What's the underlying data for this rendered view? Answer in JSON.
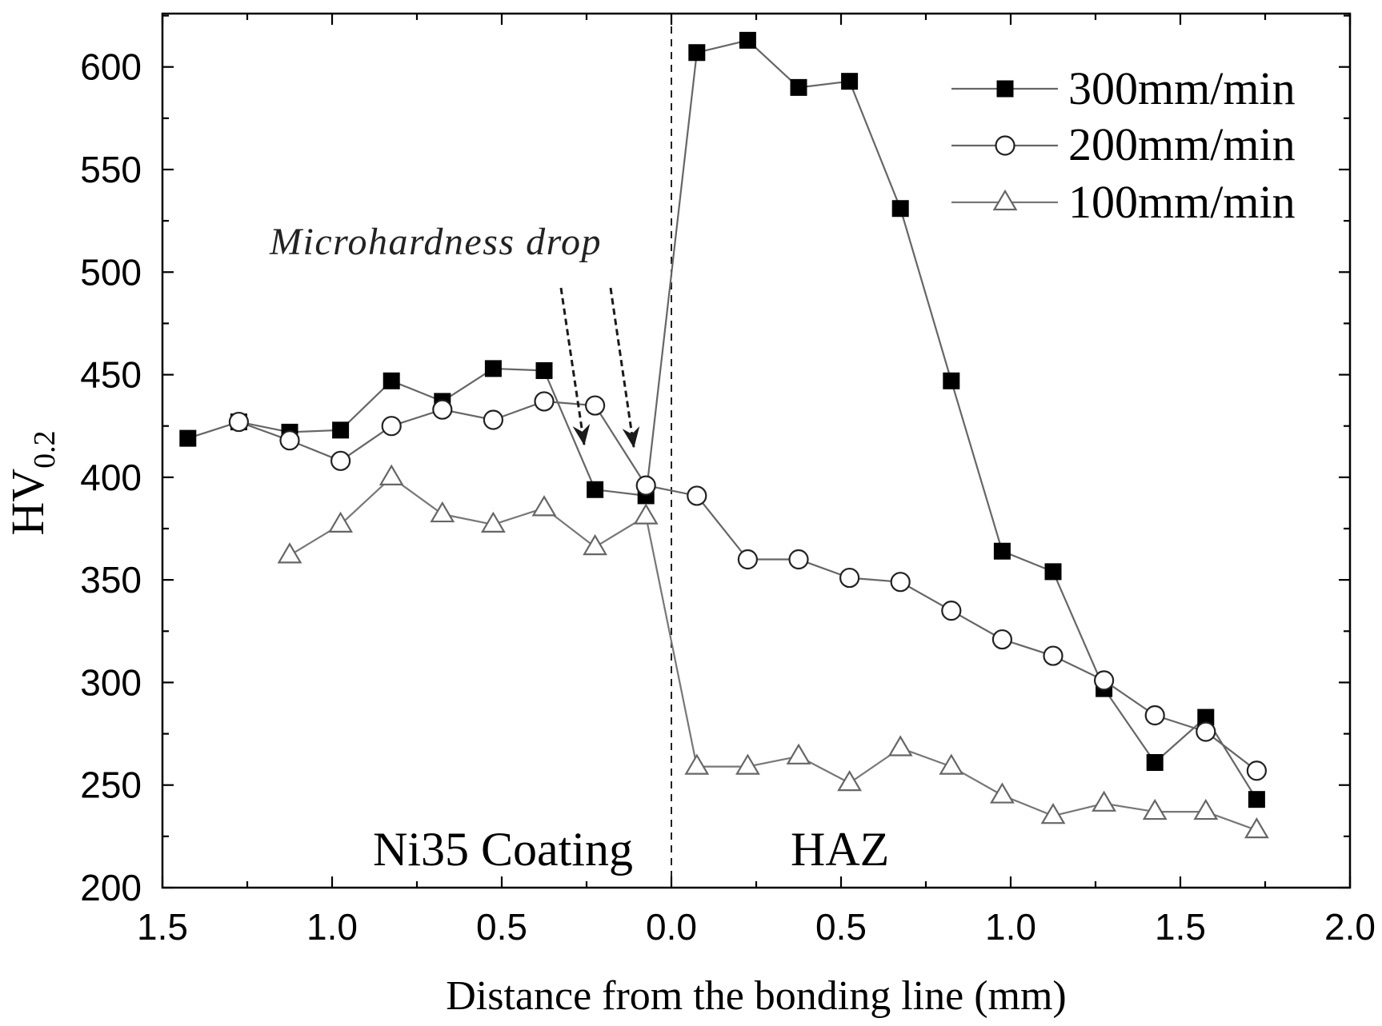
{
  "chart_data": {
    "type": "line",
    "title": "",
    "xlabel": "Distance from the bonding line (mm)",
    "ylabel": "HV",
    "ylabel_subscript": "0.2",
    "xlim": [
      -1.5,
      2.0
    ],
    "ylim": [
      200,
      626
    ],
    "x_ticks": [
      -1.5,
      -1.0,
      -0.5,
      0.0,
      0.5,
      1.0,
      1.5,
      2.0
    ],
    "x_tick_labels": [
      "1.5",
      "1.0",
      "0.5",
      "0.0",
      "0.5",
      "1.0",
      "1.5",
      "2.0"
    ],
    "x_minor_step": 0.25,
    "y_ticks": [
      200,
      250,
      300,
      350,
      400,
      450,
      500,
      550,
      600
    ],
    "y_tick_labels": [
      "200",
      "250",
      "300",
      "350",
      "400",
      "450",
      "500",
      "550",
      "600"
    ],
    "y_minor_step": 25,
    "grid": false,
    "legend_position": "top-right",
    "bonding_line_x": 0.0,
    "series": [
      {
        "name": "300mm/min",
        "marker": "filled-square",
        "marker_fill": "#000000",
        "marker_stroke": "#000000",
        "line_color": "#666666",
        "x": [
          -1.425,
          -1.275,
          -1.125,
          -0.975,
          -0.825,
          -0.675,
          -0.525,
          -0.375,
          -0.225,
          -0.075,
          0.075,
          0.225,
          0.375,
          0.525,
          0.675,
          0.825,
          0.975,
          1.125,
          1.275,
          1.425,
          1.575,
          1.725
        ],
        "y": [
          419,
          427,
          422,
          423,
          447,
          437,
          453,
          452,
          394,
          391,
          607,
          613,
          590,
          593,
          531,
          447,
          364,
          354,
          297,
          261,
          283,
          243
        ]
      },
      {
        "name": "200mm/min",
        "marker": "open-circle",
        "marker_fill": "#ffffff",
        "marker_stroke": "#222222",
        "line_color": "#666666",
        "x": [
          -1.275,
          -1.125,
          -0.975,
          -0.825,
          -0.675,
          -0.525,
          -0.375,
          -0.225,
          -0.075,
          0.075,
          0.225,
          0.375,
          0.525,
          0.675,
          0.825,
          0.975,
          1.125,
          1.275,
          1.425,
          1.575,
          1.725
        ],
        "y": [
          427,
          418,
          408,
          425,
          433,
          428,
          437,
          435,
          396,
          391,
          360,
          360,
          351,
          349,
          335,
          321,
          313,
          301,
          284,
          276,
          257
        ]
      },
      {
        "name": "100mm/min",
        "marker": "open-triangle",
        "marker_fill": "#ffffff",
        "marker_stroke": "#666666",
        "line_color": "#777777",
        "x": [
          -1.125,
          -0.975,
          -0.825,
          -0.675,
          -0.525,
          -0.375,
          -0.225,
          -0.075,
          0.075,
          0.225,
          0.375,
          0.525,
          0.675,
          0.825,
          0.975,
          1.125,
          1.275,
          1.425,
          1.575,
          1.725
        ],
        "y": [
          362,
          377,
          400,
          382,
          377,
          385,
          366,
          381,
          259,
          259,
          264,
          251,
          268,
          259,
          245,
          235,
          241,
          237,
          237,
          228
        ]
      }
    ],
    "annotations": {
      "drop_label": "Microhardness drop",
      "coating_region": "Ni35 Coating",
      "haz_region": "HAZ"
    }
  },
  "colors": {
    "axis": "#000000",
    "bonding_line": "#222222",
    "arrow": "#1a1a1a",
    "background": "#ffffff"
  }
}
